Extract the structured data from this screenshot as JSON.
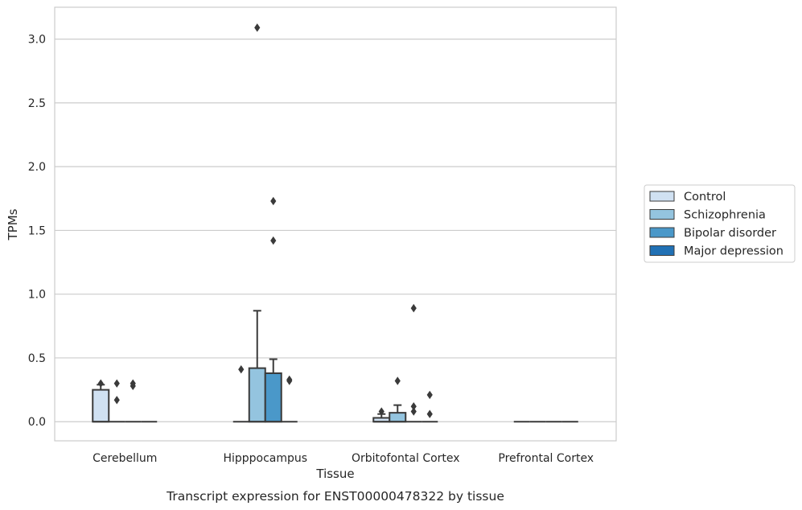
{
  "caption": "Transcript expression for ENST00000478322 by tissue",
  "chart_data": {
    "type": "box",
    "xlabel": "Tissue",
    "ylabel": "TPMs",
    "ylim": [
      -0.15,
      3.25
    ],
    "yticks": [
      0.0,
      0.5,
      1.0,
      1.5,
      2.0,
      2.5,
      3.0
    ],
    "ytick_labels": [
      "0.0",
      "0.5",
      "1.0",
      "1.5",
      "2.0",
      "2.5",
      "3.0"
    ],
    "grid": "horizontal",
    "legend_position": "right",
    "categories": [
      "Cerebellum",
      "Hipppocampus",
      "Orbitofontal Cortex",
      "Prefrontal Cortex"
    ],
    "series": [
      {
        "name": "Control",
        "color": "#d0e1f2",
        "boxes": [
          {
            "q1": 0.0,
            "median": 0.0,
            "q3": 0.25,
            "whisker_low": 0.0,
            "whisker_high": 0.29,
            "outliers": [
              0.3
            ]
          },
          {
            "q1": 0.0,
            "median": 0.0,
            "q3": 0.0,
            "whisker_low": 0.0,
            "whisker_high": 0.0,
            "outliers": [
              0.41
            ]
          },
          {
            "q1": 0.0,
            "median": 0.0,
            "q3": 0.03,
            "whisker_low": 0.0,
            "whisker_high": 0.06,
            "outliers": [
              0.08
            ]
          },
          {
            "q1": 0.0,
            "median": 0.0,
            "q3": 0.0,
            "whisker_low": 0.0,
            "whisker_high": 0.0,
            "outliers": []
          }
        ]
      },
      {
        "name": "Schizophrenia",
        "color": "#94c4df",
        "boxes": [
          {
            "q1": 0.0,
            "median": 0.0,
            "q3": 0.0,
            "whisker_low": 0.0,
            "whisker_high": 0.0,
            "outliers": [
              0.3,
              0.17
            ]
          },
          {
            "q1": 0.0,
            "median": 0.0,
            "q3": 0.42,
            "whisker_low": 0.0,
            "whisker_high": 0.87,
            "outliers": [
              3.09
            ]
          },
          {
            "q1": 0.0,
            "median": 0.0,
            "q3": 0.07,
            "whisker_low": 0.0,
            "whisker_high": 0.13,
            "outliers": [
              0.32
            ]
          },
          {
            "q1": 0.0,
            "median": 0.0,
            "q3": 0.0,
            "whisker_low": 0.0,
            "whisker_high": 0.0,
            "outliers": []
          }
        ]
      },
      {
        "name": "Bipolar disorder",
        "color": "#4a98c9",
        "boxes": [
          {
            "q1": 0.0,
            "median": 0.0,
            "q3": 0.0,
            "whisker_low": 0.0,
            "whisker_high": 0.0,
            "outliers": [
              0.3,
              0.28
            ]
          },
          {
            "q1": 0.0,
            "median": 0.0,
            "q3": 0.38,
            "whisker_low": 0.0,
            "whisker_high": 0.49,
            "outliers": [
              1.73,
              1.42
            ]
          },
          {
            "q1": 0.0,
            "median": 0.0,
            "q3": 0.0,
            "whisker_low": 0.0,
            "whisker_high": 0.0,
            "outliers": [
              0.89,
              0.12,
              0.08
            ]
          },
          {
            "q1": 0.0,
            "median": 0.0,
            "q3": 0.0,
            "whisker_low": 0.0,
            "whisker_high": 0.0,
            "outliers": []
          }
        ]
      },
      {
        "name": "Major depression",
        "color": "#2171b5",
        "boxes": [
          {
            "q1": 0.0,
            "median": 0.0,
            "q3": 0.0,
            "whisker_low": 0.0,
            "whisker_high": 0.0,
            "outliers": []
          },
          {
            "q1": 0.0,
            "median": 0.0,
            "q3": 0.0,
            "whisker_low": 0.0,
            "whisker_high": 0.0,
            "outliers": [
              0.33,
              0.32
            ]
          },
          {
            "q1": 0.0,
            "median": 0.0,
            "q3": 0.0,
            "whisker_low": 0.0,
            "whisker_high": 0.0,
            "outliers": [
              0.21,
              0.06
            ]
          },
          {
            "q1": 0.0,
            "median": 0.0,
            "q3": 0.0,
            "whisker_low": 0.0,
            "whisker_high": 0.0,
            "outliers": []
          }
        ]
      }
    ]
  }
}
